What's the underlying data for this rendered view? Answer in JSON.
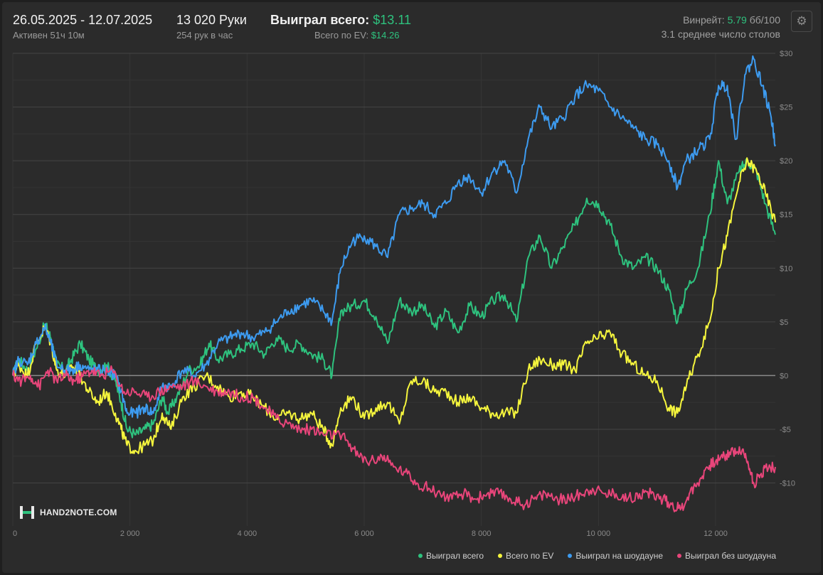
{
  "header": {
    "date_range": "26.05.2025 - 12.07.2025",
    "active_time": "Активен 51ч 10м",
    "hands": "13 020 Руки",
    "hands_per_hour": "254 рук в час",
    "won_total_label": "Выиграл всего:",
    "won_total_value": "$13.11",
    "ev_total_label": "Всего по EV:",
    "ev_total_value": "$14.26",
    "winrate_label": "Винрейт:",
    "winrate_value": "5.79",
    "winrate_unit": "бб/100",
    "avg_tables": "3.1 среднее число столов"
  },
  "icons": {
    "settings": "gear-icon",
    "logo": "hand2note-logo"
  },
  "logo_text": "HAND2NOTE.COM",
  "colors": {
    "background": "#2b2b2b",
    "won_total": "#2ec27e",
    "ev": "#f5f53d",
    "showdown": "#3d9bf0",
    "non_showdown": "#e8457a",
    "zero_line": "#8a8a8a"
  },
  "chart_data": {
    "type": "line",
    "xlim": [
      0,
      13020
    ],
    "ylim": [
      -14,
      30
    ],
    "x_ticks": [
      0,
      2000,
      4000,
      6000,
      8000,
      10000,
      12000
    ],
    "x_tick_labels": [
      "0",
      "2 000",
      "4 000",
      "6 000",
      "8 000",
      "10 000",
      "12 000"
    ],
    "y_ticks": [
      30,
      25,
      20,
      15,
      10,
      5,
      0,
      -5,
      -10
    ],
    "y_tick_labels": [
      "$30",
      "$25",
      "$20",
      "$15",
      "$10",
      "$5",
      "$0",
      "-$5",
      "-$10"
    ],
    "grid": true,
    "legend_position": "bottom-right",
    "series": [
      {
        "name": "Выиграл всего",
        "color": "#2ec27e",
        "points": [
          [
            0,
            0
          ],
          [
            100,
            1.5
          ],
          [
            250,
            0.5
          ],
          [
            400,
            2.5
          ],
          [
            550,
            4.8
          ],
          [
            650,
            3.5
          ],
          [
            750,
            1
          ],
          [
            900,
            0.5
          ],
          [
            1000,
            1.5
          ],
          [
            1150,
            3
          ],
          [
            1300,
            1.5
          ],
          [
            1450,
            0.5
          ],
          [
            1600,
            1
          ],
          [
            1750,
            -0.5
          ],
          [
            1850,
            -2.5
          ],
          [
            1950,
            -5
          ],
          [
            2100,
            -5.5
          ],
          [
            2250,
            -5
          ],
          [
            2400,
            -4.5
          ],
          [
            2550,
            -2
          ],
          [
            2650,
            -3.5
          ],
          [
            2800,
            -2
          ],
          [
            3000,
            0.5
          ],
          [
            3200,
            1
          ],
          [
            3350,
            3
          ],
          [
            3500,
            1.5
          ],
          [
            3700,
            2
          ],
          [
            3900,
            2.5
          ],
          [
            4100,
            3
          ],
          [
            4300,
            2
          ],
          [
            4500,
            3.5
          ],
          [
            4700,
            2.5
          ],
          [
            4900,
            3
          ],
          [
            5100,
            2
          ],
          [
            5300,
            1.5
          ],
          [
            5450,
            0
          ],
          [
            5600,
            6
          ],
          [
            5800,
            6.5
          ],
          [
            6000,
            7
          ],
          [
            6200,
            5.5
          ],
          [
            6400,
            3
          ],
          [
            6600,
            7
          ],
          [
            6800,
            6
          ],
          [
            7000,
            6.5
          ],
          [
            7200,
            4.5
          ],
          [
            7400,
            6
          ],
          [
            7600,
            4
          ],
          [
            7800,
            6.5
          ],
          [
            8000,
            5.5
          ],
          [
            8200,
            7
          ],
          [
            8400,
            7.5
          ],
          [
            8600,
            5
          ],
          [
            8800,
            11
          ],
          [
            9000,
            13
          ],
          [
            9200,
            10
          ],
          [
            9400,
            12
          ],
          [
            9600,
            14
          ],
          [
            9800,
            16.5
          ],
          [
            10000,
            16
          ],
          [
            10200,
            14
          ],
          [
            10400,
            11
          ],
          [
            10600,
            10
          ],
          [
            10800,
            11
          ],
          [
            11000,
            10
          ],
          [
            11200,
            8
          ],
          [
            11350,
            5
          ],
          [
            11500,
            8
          ],
          [
            11700,
            10
          ],
          [
            11900,
            15
          ],
          [
            12050,
            20
          ],
          [
            12200,
            16
          ],
          [
            12400,
            19
          ],
          [
            12550,
            20
          ],
          [
            12700,
            19
          ],
          [
            12850,
            16
          ],
          [
            13020,
            13.11
          ]
        ]
      },
      {
        "name": "Всего по EV",
        "color": "#f5f53d",
        "points": [
          [
            0,
            0
          ],
          [
            100,
            1
          ],
          [
            250,
            0
          ],
          [
            400,
            3
          ],
          [
            550,
            4.5
          ],
          [
            650,
            3
          ],
          [
            750,
            0.5
          ],
          [
            900,
            0
          ],
          [
            1000,
            1
          ],
          [
            1150,
            0
          ],
          [
            1300,
            -1.5
          ],
          [
            1450,
            -2.5
          ],
          [
            1600,
            -1.5
          ],
          [
            1750,
            -3.5
          ],
          [
            1850,
            -5
          ],
          [
            1950,
            -6.5
          ],
          [
            2100,
            -7
          ],
          [
            2250,
            -6.5
          ],
          [
            2400,
            -6
          ],
          [
            2550,
            -3.5
          ],
          [
            2700,
            -5
          ],
          [
            2900,
            -2
          ],
          [
            3100,
            -1
          ],
          [
            3300,
            0
          ],
          [
            3500,
            -1
          ],
          [
            3700,
            -2
          ],
          [
            3900,
            -1.5
          ],
          [
            4100,
            -2
          ],
          [
            4300,
            -3
          ],
          [
            4500,
            -4
          ],
          [
            4700,
            -3.5
          ],
          [
            4900,
            -4
          ],
          [
            5100,
            -3.5
          ],
          [
            5300,
            -5
          ],
          [
            5450,
            -6.5
          ],
          [
            5600,
            -3
          ],
          [
            5800,
            -2
          ],
          [
            6000,
            -4
          ],
          [
            6200,
            -3
          ],
          [
            6400,
            -2.5
          ],
          [
            6600,
            -4.5
          ],
          [
            6800,
            -0.5
          ],
          [
            7000,
            -0.5
          ],
          [
            7200,
            -1.5
          ],
          [
            7400,
            -1.5
          ],
          [
            7600,
            -2.5
          ],
          [
            7800,
            -2
          ],
          [
            8000,
            -3
          ],
          [
            8200,
            -3.5
          ],
          [
            8400,
            -3.5
          ],
          [
            8600,
            -3.5
          ],
          [
            8800,
            0.5
          ],
          [
            9000,
            1.5
          ],
          [
            9200,
            1
          ],
          [
            9400,
            1
          ],
          [
            9600,
            0.5
          ],
          [
            9800,
            3
          ],
          [
            10000,
            3.5
          ],
          [
            10200,
            4
          ],
          [
            10400,
            2
          ],
          [
            10600,
            1
          ],
          [
            10800,
            0
          ],
          [
            11000,
            -0.5
          ],
          [
            11200,
            -3
          ],
          [
            11350,
            -3.5
          ],
          [
            11500,
            -1
          ],
          [
            11700,
            2
          ],
          [
            11900,
            5
          ],
          [
            12050,
            10
          ],
          [
            12200,
            13
          ],
          [
            12400,
            18
          ],
          [
            12550,
            20
          ],
          [
            12700,
            19
          ],
          [
            12850,
            17
          ],
          [
            13020,
            14.26
          ]
        ]
      },
      {
        "name": "Выиграл на шоудауне",
        "color": "#3d9bf0",
        "points": [
          [
            0,
            0
          ],
          [
            100,
            1.5
          ],
          [
            250,
            1
          ],
          [
            400,
            3
          ],
          [
            550,
            4.5
          ],
          [
            650,
            3
          ],
          [
            750,
            1
          ],
          [
            900,
            0.5
          ],
          [
            1000,
            0.5
          ],
          [
            1150,
            1
          ],
          [
            1300,
            0.5
          ],
          [
            1450,
            0.5
          ],
          [
            1600,
            0.5
          ],
          [
            1750,
            0
          ],
          [
            1850,
            -1.5
          ],
          [
            1950,
            -3.5
          ],
          [
            2100,
            -3.5
          ],
          [
            2250,
            -3
          ],
          [
            2400,
            -3.5
          ],
          [
            2550,
            -1
          ],
          [
            2700,
            -1
          ],
          [
            2900,
            0.5
          ],
          [
            3100,
            0
          ],
          [
            3300,
            1
          ],
          [
            3500,
            3
          ],
          [
            3700,
            3.5
          ],
          [
            3900,
            4
          ],
          [
            4100,
            3.5
          ],
          [
            4300,
            4
          ],
          [
            4500,
            5
          ],
          [
            4700,
            6
          ],
          [
            4900,
            6.5
          ],
          [
            5100,
            7
          ],
          [
            5300,
            6
          ],
          [
            5450,
            5
          ],
          [
            5600,
            10
          ],
          [
            5800,
            12.5
          ],
          [
            6000,
            13
          ],
          [
            6200,
            12
          ],
          [
            6400,
            11
          ],
          [
            6600,
            15
          ],
          [
            6800,
            15.5
          ],
          [
            7000,
            16
          ],
          [
            7200,
            15
          ],
          [
            7400,
            16
          ],
          [
            7600,
            18
          ],
          [
            7800,
            18.5
          ],
          [
            8000,
            17
          ],
          [
            8200,
            19
          ],
          [
            8400,
            20
          ],
          [
            8600,
            17
          ],
          [
            8800,
            22
          ],
          [
            9000,
            25
          ],
          [
            9200,
            23
          ],
          [
            9400,
            24
          ],
          [
            9600,
            26
          ],
          [
            9800,
            27
          ],
          [
            10000,
            26.5
          ],
          [
            10200,
            25
          ],
          [
            10400,
            24
          ],
          [
            10600,
            23
          ],
          [
            10800,
            22
          ],
          [
            11000,
            21.5
          ],
          [
            11200,
            20
          ],
          [
            11350,
            17.5
          ],
          [
            11500,
            20
          ],
          [
            11700,
            21
          ],
          [
            11900,
            22
          ],
          [
            12050,
            27
          ],
          [
            12200,
            27
          ],
          [
            12350,
            22
          ],
          [
            12500,
            28
          ],
          [
            12650,
            29.5
          ],
          [
            12800,
            27
          ],
          [
            12950,
            24
          ],
          [
            13020,
            21.5
          ]
        ]
      },
      {
        "name": "Выиграл без шоудауна",
        "color": "#e8457a",
        "points": [
          [
            0,
            0
          ],
          [
            150,
            -0.5
          ],
          [
            300,
            0
          ],
          [
            450,
            -1
          ],
          [
            600,
            0.5
          ],
          [
            750,
            -0.5
          ],
          [
            900,
            0
          ],
          [
            1050,
            -0.5
          ],
          [
            1200,
            0
          ],
          [
            1350,
            0.5
          ],
          [
            1500,
            0
          ],
          [
            1700,
            0.5
          ],
          [
            1900,
            -1.5
          ],
          [
            2100,
            -1.5
          ],
          [
            2300,
            -2
          ],
          [
            2500,
            -1.5
          ],
          [
            2700,
            -1
          ],
          [
            2900,
            -1
          ],
          [
            3100,
            -0.5
          ],
          [
            3300,
            -1
          ],
          [
            3500,
            -1.5
          ],
          [
            3700,
            -1.5
          ],
          [
            3900,
            -2
          ],
          [
            4100,
            -2
          ],
          [
            4300,
            -3
          ],
          [
            4500,
            -4
          ],
          [
            4700,
            -4.5
          ],
          [
            4900,
            -5
          ],
          [
            5100,
            -5
          ],
          [
            5300,
            -5.5
          ],
          [
            5500,
            -5.5
          ],
          [
            5700,
            -6
          ],
          [
            5900,
            -7.5
          ],
          [
            6100,
            -8
          ],
          [
            6300,
            -7.5
          ],
          [
            6500,
            -8.5
          ],
          [
            6700,
            -9
          ],
          [
            6900,
            -10
          ],
          [
            7100,
            -10.5
          ],
          [
            7300,
            -11
          ],
          [
            7500,
            -11.5
          ],
          [
            7700,
            -11
          ],
          [
            7900,
            -11.5
          ],
          [
            8100,
            -11
          ],
          [
            8300,
            -11
          ],
          [
            8500,
            -11.5
          ],
          [
            8700,
            -12
          ],
          [
            8900,
            -11.5
          ],
          [
            9100,
            -11
          ],
          [
            9300,
            -11.5
          ],
          [
            9500,
            -11.5
          ],
          [
            9700,
            -11
          ],
          [
            9900,
            -10.5
          ],
          [
            10100,
            -11
          ],
          [
            10300,
            -11
          ],
          [
            10500,
            -11.5
          ],
          [
            10700,
            -11
          ],
          [
            10900,
            -11
          ],
          [
            11100,
            -11.5
          ],
          [
            11250,
            -12
          ],
          [
            11400,
            -12.5
          ],
          [
            11550,
            -11
          ],
          [
            11700,
            -10
          ],
          [
            11850,
            -8.5
          ],
          [
            12000,
            -8
          ],
          [
            12150,
            -7.5
          ],
          [
            12300,
            -7
          ],
          [
            12450,
            -7
          ],
          [
            12550,
            -8
          ],
          [
            12650,
            -10
          ],
          [
            12750,
            -9.5
          ],
          [
            12850,
            -8.5
          ],
          [
            13020,
            -8.5
          ]
        ]
      }
    ]
  }
}
